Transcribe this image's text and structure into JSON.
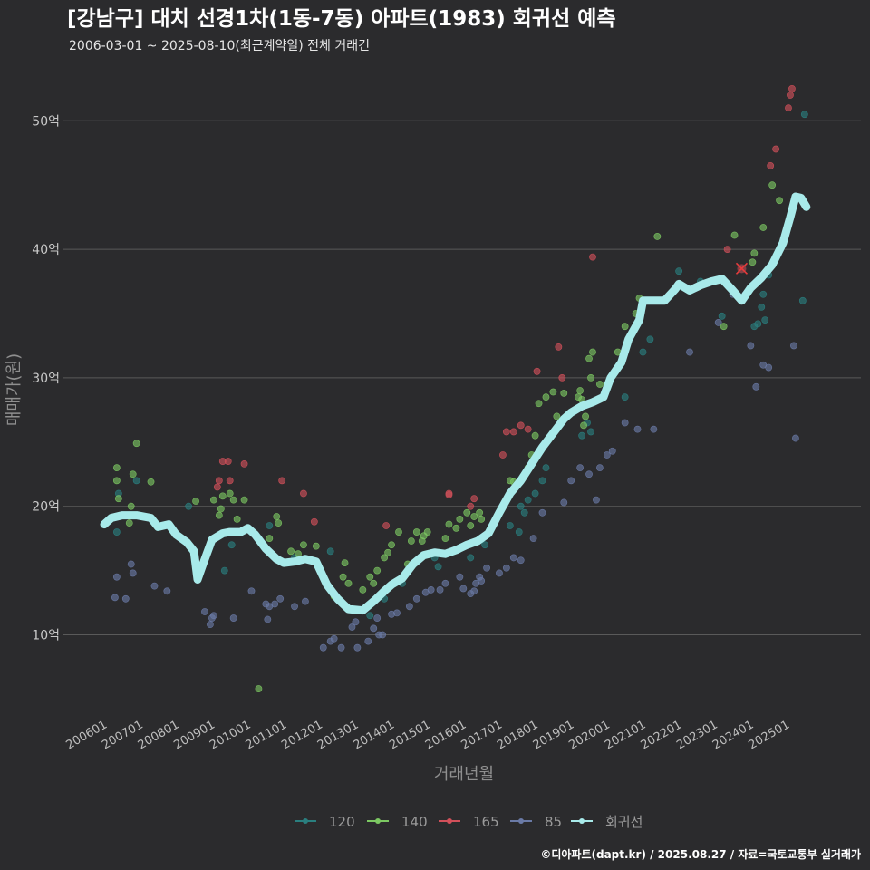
{
  "title": "[강남구] 대치 선경1차(1동-7동) 아파트(1983) 회귀선 예측",
  "subtitle": "2006-03-01 ~ 2025-08-10(최근계약일) 전체 거래건",
  "footer": "©디아파트(dapt.kr) / 2025.08.27 / 자료=국토교통부 실거래가",
  "colors": {
    "background": "#2b2b2d",
    "grid": "#5a5a5a",
    "s120": "#2a7f7f",
    "s140": "#7cc862",
    "s165": "#d2505a",
    "s85": "#6a7aa6",
    "trend": "#a8eaea"
  },
  "chart_data": {
    "type": "scatter",
    "title": "[강남구] 대치 선경1차(1동-7동) 아파트(1983) 회귀선 예측",
    "xlabel": "거래년월",
    "ylabel": "매매가(원)",
    "xlim": [
      2006.0,
      2025.95
    ],
    "ylim": [
      4,
      55
    ],
    "yticks": [
      10,
      20,
      30,
      40,
      50
    ],
    "ytick_labels": [
      "10억",
      "20억",
      "30억",
      "40억",
      "50억"
    ],
    "xticks": [
      2006,
      2007,
      2008,
      2009,
      2010,
      2011,
      2012,
      2013,
      2014,
      2015,
      2016,
      2017,
      2018,
      2019,
      2020,
      2021,
      2022,
      2023,
      2024,
      2025
    ],
    "xtick_labels": [
      "200601",
      "200701",
      "200801",
      "200901",
      "201001",
      "201101",
      "201201",
      "201301",
      "201401",
      "201501",
      "201601",
      "201701",
      "201801",
      "201901",
      "202001",
      "202101",
      "202201",
      "202301",
      "202401",
      "202501"
    ],
    "legend": [
      "120",
      "140",
      "165",
      "85",
      "회귀선"
    ],
    "highlight": [
      2023.75,
      38.5
    ],
    "series": [
      {
        "name": "120",
        "key": "s120",
        "points": [
          [
            2006.35,
            18.0
          ],
          [
            2006.4,
            21.0
          ],
          [
            2006.9,
            22.0
          ],
          [
            2008.35,
            20.0
          ],
          [
            2009.35,
            15.0
          ],
          [
            2009.55,
            17.0
          ],
          [
            2010.6,
            18.5
          ],
          [
            2011.3,
            16.0
          ],
          [
            2012.3,
            16.5
          ],
          [
            2013.4,
            11.5
          ],
          [
            2013.8,
            12.8
          ],
          [
            2014.3,
            14.0
          ],
          [
            2015.2,
            16.0
          ],
          [
            2015.3,
            15.3
          ],
          [
            2016.2,
            16.0
          ],
          [
            2016.6,
            17.0
          ],
          [
            2017.3,
            18.5
          ],
          [
            2017.55,
            18.0
          ],
          [
            2017.6,
            20.0
          ],
          [
            2017.7,
            19.5
          ],
          [
            2017.8,
            20.5
          ],
          [
            2018.0,
            21.0
          ],
          [
            2018.2,
            22.0
          ],
          [
            2018.3,
            23.0
          ],
          [
            2019.3,
            25.5
          ],
          [
            2019.45,
            26.5
          ],
          [
            2019.55,
            25.8
          ],
          [
            2020.5,
            28.5
          ],
          [
            2021.0,
            32.0
          ],
          [
            2021.2,
            33.0
          ],
          [
            2022.0,
            38.3
          ],
          [
            2022.6,
            37.5
          ],
          [
            2023.2,
            34.8
          ],
          [
            2024.1,
            34.0
          ],
          [
            2024.2,
            34.2
          ],
          [
            2024.3,
            35.5
          ],
          [
            2024.35,
            36.5
          ],
          [
            2024.4,
            34.5
          ],
          [
            2024.5,
            38.0
          ],
          [
            2025.45,
            36.0
          ],
          [
            2025.5,
            50.5
          ]
        ]
      },
      {
        "name": "140",
        "key": "s140",
        "points": [
          [
            2006.35,
            22.0
          ],
          [
            2006.35,
            23.0
          ],
          [
            2006.4,
            20.6
          ],
          [
            2006.7,
            18.7
          ],
          [
            2006.75,
            20.0
          ],
          [
            2006.8,
            22.5
          ],
          [
            2006.9,
            24.9
          ],
          [
            2007.3,
            21.9
          ],
          [
            2007.65,
            18.5
          ],
          [
            2008.55,
            20.4
          ],
          [
            2009.05,
            20.5
          ],
          [
            2009.2,
            19.3
          ],
          [
            2009.25,
            19.8
          ],
          [
            2009.3,
            20.8
          ],
          [
            2009.5,
            21.0
          ],
          [
            2009.6,
            20.5
          ],
          [
            2009.7,
            19.0
          ],
          [
            2009.9,
            20.5
          ],
          [
            2010.3,
            5.8
          ],
          [
            2010.6,
            17.5
          ],
          [
            2010.8,
            19.2
          ],
          [
            2010.85,
            18.7
          ],
          [
            2011.2,
            16.5
          ],
          [
            2011.4,
            16.3
          ],
          [
            2011.55,
            17.0
          ],
          [
            2011.9,
            16.9
          ],
          [
            2012.4,
            13.0
          ],
          [
            2012.65,
            14.5
          ],
          [
            2012.7,
            15.6
          ],
          [
            2012.8,
            14.0
          ],
          [
            2013.2,
            13.5
          ],
          [
            2013.4,
            14.5
          ],
          [
            2013.5,
            14.0
          ],
          [
            2013.6,
            15.0
          ],
          [
            2013.8,
            16.0
          ],
          [
            2013.9,
            16.4
          ],
          [
            2014.0,
            17.0
          ],
          [
            2014.2,
            18.0
          ],
          [
            2014.45,
            15.5
          ],
          [
            2014.55,
            17.3
          ],
          [
            2014.7,
            18.0
          ],
          [
            2014.85,
            17.3
          ],
          [
            2014.9,
            17.7
          ],
          [
            2015.0,
            18.0
          ],
          [
            2015.5,
            17.5
          ],
          [
            2015.6,
            18.6
          ],
          [
            2015.8,
            18.3
          ],
          [
            2015.9,
            19.0
          ],
          [
            2016.1,
            19.5
          ],
          [
            2016.2,
            18.5
          ],
          [
            2016.3,
            19.2
          ],
          [
            2016.45,
            19.5
          ],
          [
            2016.5,
            19.0
          ],
          [
            2017.3,
            22.0
          ],
          [
            2017.4,
            21.9
          ],
          [
            2017.8,
            23.0
          ],
          [
            2017.9,
            24.0
          ],
          [
            2018.0,
            25.5
          ],
          [
            2018.1,
            28.0
          ],
          [
            2018.3,
            28.5
          ],
          [
            2018.5,
            28.9
          ],
          [
            2018.6,
            27.0
          ],
          [
            2018.7,
            26.5
          ],
          [
            2018.8,
            28.8
          ],
          [
            2019.2,
            28.5
          ],
          [
            2019.25,
            29.0
          ],
          [
            2019.3,
            28.3
          ],
          [
            2019.35,
            26.3
          ],
          [
            2019.4,
            27.0
          ],
          [
            2019.5,
            31.5
          ],
          [
            2019.55,
            30.0
          ],
          [
            2019.6,
            32.0
          ],
          [
            2019.8,
            29.5
          ],
          [
            2020.3,
            32.0
          ],
          [
            2020.5,
            34.0
          ],
          [
            2020.8,
            35.0
          ],
          [
            2020.9,
            36.2
          ],
          [
            2021.4,
            41.0
          ],
          [
            2023.25,
            34.0
          ],
          [
            2023.55,
            41.1
          ],
          [
            2024.05,
            39.0
          ],
          [
            2024.1,
            39.7
          ],
          [
            2024.35,
            41.7
          ],
          [
            2024.6,
            45.0
          ],
          [
            2024.8,
            43.8
          ]
        ]
      },
      {
        "name": "165",
        "key": "s165",
        "points": [
          [
            2009.15,
            21.5
          ],
          [
            2009.2,
            22.0
          ],
          [
            2009.3,
            23.5
          ],
          [
            2009.45,
            23.5
          ],
          [
            2009.5,
            22.0
          ],
          [
            2009.9,
            23.3
          ],
          [
            2010.95,
            22.0
          ],
          [
            2011.55,
            21.0
          ],
          [
            2011.85,
            18.8
          ],
          [
            2013.85,
            18.5
          ],
          [
            2015.6,
            20.9
          ],
          [
            2015.6,
            21.0
          ],
          [
            2016.2,
            20.0
          ],
          [
            2016.3,
            20.6
          ],
          [
            2017.1,
            24.0
          ],
          [
            2017.2,
            25.8
          ],
          [
            2017.4,
            25.8
          ],
          [
            2017.6,
            26.3
          ],
          [
            2017.8,
            26.0
          ],
          [
            2018.05,
            30.5
          ],
          [
            2018.65,
            32.4
          ],
          [
            2018.75,
            30.0
          ],
          [
            2019.6,
            39.4
          ],
          [
            2023.35,
            40.0
          ],
          [
            2024.55,
            46.5
          ],
          [
            2024.7,
            47.8
          ],
          [
            2025.05,
            51.0
          ],
          [
            2025.1,
            52.0
          ],
          [
            2025.15,
            52.5
          ]
        ]
      },
      {
        "name": "85",
        "key": "s85",
        "points": [
          [
            2006.3,
            12.9
          ],
          [
            2006.35,
            14.5
          ],
          [
            2006.6,
            12.8
          ],
          [
            2006.75,
            15.5
          ],
          [
            2006.8,
            14.8
          ],
          [
            2007.4,
            13.8
          ],
          [
            2007.75,
            13.4
          ],
          [
            2008.8,
            11.8
          ],
          [
            2008.95,
            10.8
          ],
          [
            2009.0,
            11.3
          ],
          [
            2009.05,
            11.5
          ],
          [
            2009.6,
            11.3
          ],
          [
            2010.1,
            13.4
          ],
          [
            2010.5,
            12.4
          ],
          [
            2010.55,
            11.2
          ],
          [
            2010.6,
            12.2
          ],
          [
            2010.75,
            12.4
          ],
          [
            2010.9,
            12.8
          ],
          [
            2011.3,
            12.2
          ],
          [
            2011.6,
            12.6
          ],
          [
            2012.1,
            9.0
          ],
          [
            2012.3,
            9.5
          ],
          [
            2012.4,
            9.7
          ],
          [
            2012.6,
            9.0
          ],
          [
            2012.9,
            10.6
          ],
          [
            2013.0,
            11.0
          ],
          [
            2013.05,
            9.0
          ],
          [
            2013.35,
            9.5
          ],
          [
            2013.5,
            10.5
          ],
          [
            2013.6,
            11.3
          ],
          [
            2013.65,
            10.0
          ],
          [
            2013.75,
            10.0
          ],
          [
            2014.0,
            11.6
          ],
          [
            2014.15,
            11.7
          ],
          [
            2014.5,
            12.2
          ],
          [
            2014.7,
            12.8
          ],
          [
            2014.95,
            13.3
          ],
          [
            2015.1,
            13.5
          ],
          [
            2015.35,
            13.5
          ],
          [
            2015.5,
            14.0
          ],
          [
            2015.9,
            14.5
          ],
          [
            2016.0,
            13.6
          ],
          [
            2016.2,
            13.2
          ],
          [
            2016.3,
            13.4
          ],
          [
            2016.35,
            14.0
          ],
          [
            2016.45,
            14.5
          ],
          [
            2016.5,
            14.2
          ],
          [
            2016.65,
            15.2
          ],
          [
            2017.0,
            14.8
          ],
          [
            2017.2,
            15.2
          ],
          [
            2017.4,
            16.0
          ],
          [
            2017.6,
            15.8
          ],
          [
            2017.95,
            17.5
          ],
          [
            2018.2,
            19.5
          ],
          [
            2018.8,
            20.3
          ],
          [
            2019.0,
            22.0
          ],
          [
            2019.25,
            23.0
          ],
          [
            2019.5,
            22.5
          ],
          [
            2019.7,
            20.5
          ],
          [
            2019.8,
            23.0
          ],
          [
            2020.0,
            24.0
          ],
          [
            2020.15,
            24.3
          ],
          [
            2020.5,
            26.5
          ],
          [
            2020.85,
            26.0
          ],
          [
            2021.3,
            26.0
          ],
          [
            2022.3,
            32.0
          ],
          [
            2023.1,
            34.3
          ],
          [
            2023.5,
            36.5
          ],
          [
            2023.85,
            36.5
          ],
          [
            2024.0,
            32.5
          ],
          [
            2024.15,
            29.3
          ],
          [
            2024.35,
            31.0
          ],
          [
            2024.5,
            30.8
          ],
          [
            2025.2,
            32.5
          ],
          [
            2025.25,
            25.3
          ]
        ]
      }
    ],
    "trend": [
      [
        2006.0,
        18.6
      ],
      [
        2006.2,
        19.1
      ],
      [
        2006.5,
        19.3
      ],
      [
        2006.9,
        19.3
      ],
      [
        2007.3,
        19.1
      ],
      [
        2007.5,
        18.4
      ],
      [
        2007.8,
        18.6
      ],
      [
        2008.0,
        17.8
      ],
      [
        2008.3,
        17.2
      ],
      [
        2008.5,
        16.5
      ],
      [
        2008.6,
        14.3
      ],
      [
        2008.75,
        15.5
      ],
      [
        2009.0,
        17.4
      ],
      [
        2009.3,
        17.9
      ],
      [
        2009.5,
        18.0
      ],
      [
        2009.8,
        18.0
      ],
      [
        2010.0,
        18.3
      ],
      [
        2010.2,
        17.8
      ],
      [
        2010.5,
        16.7
      ],
      [
        2010.8,
        15.9
      ],
      [
        2011.0,
        15.6
      ],
      [
        2011.3,
        15.7
      ],
      [
        2011.6,
        15.9
      ],
      [
        2011.9,
        15.7
      ],
      [
        2012.2,
        13.9
      ],
      [
        2012.5,
        12.8
      ],
      [
        2012.8,
        12.0
      ],
      [
        2013.2,
        11.9
      ],
      [
        2013.5,
        12.6
      ],
      [
        2013.8,
        13.4
      ],
      [
        2014.0,
        13.9
      ],
      [
        2014.3,
        14.4
      ],
      [
        2014.6,
        15.5
      ],
      [
        2014.9,
        16.2
      ],
      [
        2015.2,
        16.4
      ],
      [
        2015.5,
        16.3
      ],
      [
        2015.8,
        16.6
      ],
      [
        2016.1,
        17.0
      ],
      [
        2016.4,
        17.3
      ],
      [
        2016.7,
        17.9
      ],
      [
        2017.0,
        19.5
      ],
      [
        2017.3,
        21.0
      ],
      [
        2017.6,
        22.0
      ],
      [
        2017.9,
        23.3
      ],
      [
        2018.2,
        24.6
      ],
      [
        2018.5,
        25.7
      ],
      [
        2018.8,
        26.8
      ],
      [
        2019.0,
        27.3
      ],
      [
        2019.3,
        27.8
      ],
      [
        2019.6,
        28.1
      ],
      [
        2019.9,
        28.5
      ],
      [
        2020.1,
        30.0
      ],
      [
        2020.4,
        31.2
      ],
      [
        2020.6,
        33.0
      ],
      [
        2020.9,
        34.5
      ],
      [
        2021.0,
        36.0
      ],
      [
        2021.3,
        36.0
      ],
      [
        2021.6,
        36.0
      ],
      [
        2021.9,
        36.9
      ],
      [
        2022.0,
        37.3
      ],
      [
        2022.3,
        36.8
      ],
      [
        2022.6,
        37.2
      ],
      [
        2022.9,
        37.5
      ],
      [
        2023.2,
        37.7
      ],
      [
        2023.5,
        36.8
      ],
      [
        2023.75,
        36.0
      ],
      [
        2024.0,
        37.0
      ],
      [
        2024.3,
        37.8
      ],
      [
        2024.6,
        38.8
      ],
      [
        2024.9,
        40.5
      ],
      [
        2025.1,
        42.5
      ],
      [
        2025.25,
        44.1
      ],
      [
        2025.4,
        44.0
      ],
      [
        2025.55,
        43.3
      ]
    ]
  }
}
